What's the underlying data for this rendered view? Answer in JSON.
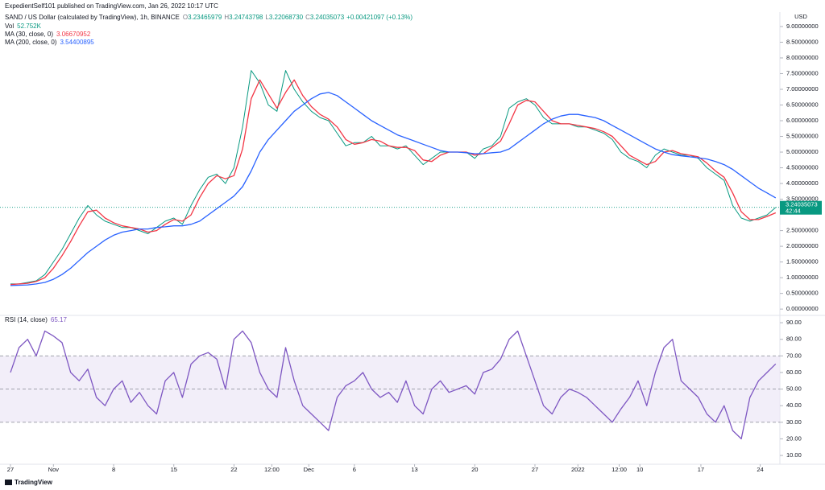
{
  "header": {
    "publisher_line": "ExpedientSelf101 published on TradingView.com, Jan 26, 2022 10:17 UTC",
    "ohlc": [
      [
        "O",
        "3.23465979"
      ],
      [
        "H",
        "3.24743798"
      ],
      [
        "L",
        "3.22068730"
      ],
      [
        "C"
      ]
    ],
    "change": "+0.00421097 (+0.13%)",
    "brand": "TradingView"
  },
  "chart_data": [
    {
      "type": "line",
      "title": "SAND / US Dollar (calculated by TradingView), 1h, BINANCE",
      "axis_label": "USD",
      "volume_label": "Vol",
      "volume_value": "52.752K",
      "countdown": "42:44",
      "x": [
        0,
        1,
        2,
        3,
        4,
        5,
        6,
        7,
        8,
        9,
        10,
        11,
        12,
        13,
        14,
        15,
        16,
        17,
        18,
        19,
        20,
        21,
        22,
        23,
        24,
        25,
        26,
        27,
        28,
        29,
        30,
        31,
        32,
        33,
        34,
        35,
        36,
        37,
        38,
        39,
        40,
        41,
        42,
        43,
        44,
        45,
        46,
        47,
        48,
        49,
        50,
        51,
        52,
        53,
        54,
        55,
        56,
        57,
        58,
        59,
        60,
        61,
        62,
        63,
        64,
        65,
        66,
        67,
        68,
        69,
        70,
        71,
        72,
        73,
        74,
        75,
        76,
        77,
        78,
        79,
        80,
        81,
        82,
        83,
        84,
        85,
        86,
        87,
        88,
        89
      ],
      "xlim": [
        -1.215,
        89.3
      ],
      "ylim": [
        -0.15,
        9.46
      ],
      "yticks": [
        {
          "value": 0,
          "label": "0.00000000"
        },
        {
          "value": 0.5,
          "label": "0.50000000"
        },
        {
          "value": 1,
          "label": "1.00000000"
        },
        {
          "value": 1.5,
          "label": "1.50000000"
        },
        {
          "value": 2,
          "label": "2.00000000"
        },
        {
          "value": 2.5,
          "label": "2.50000000"
        },
        {
          "value": 3.5,
          "label": "3.50000000"
        },
        {
          "value": 4,
          "label": "4.00000000"
        },
        {
          "value": 4.5,
          "label": "4.50000000"
        },
        {
          "value": 5,
          "label": "5.00000000"
        },
        {
          "value": 5.5,
          "label": "5.50000000"
        },
        {
          "value": 6,
          "label": "6.00000000"
        },
        {
          "value": 6.5,
          "label": "6.50000000"
        },
        {
          "value": 7,
          "label": "7.00000000"
        },
        {
          "value": 7.5,
          "label": "7.50000000"
        },
        {
          "value": 8,
          "label": "8.00000000"
        },
        {
          "value": 8.5,
          "label": "8.50000000"
        },
        {
          "value": 9,
          "label": "9.00000000"
        }
      ],
      "grid": false,
      "series": [
        {
          "name": "SAND / USD",
          "color": "#089981",
          "values": [
            0.8,
            0.8,
            0.85,
            0.9,
            1.1,
            1.5,
            1.9,
            2.4,
            2.9,
            3.3,
            3.0,
            2.8,
            2.7,
            2.6,
            2.6,
            2.5,
            2.4,
            2.6,
            2.8,
            2.9,
            2.7,
            3.3,
            3.8,
            4.2,
            4.3,
            4.0,
            4.5,
            5.8,
            7.6,
            7.2,
            6.5,
            6.3,
            7.6,
            7.0,
            6.6,
            6.3,
            6.1,
            6.0,
            5.6,
            5.2,
            5.3,
            5.3,
            5.5,
            5.2,
            5.2,
            5.1,
            5.2,
            4.9,
            4.6,
            4.8,
            5.0,
            5.0,
            5.0,
            5.0,
            4.8,
            5.1,
            5.2,
            5.5,
            6.4,
            6.6,
            6.7,
            6.5,
            6.1,
            5.9,
            5.9,
            5.9,
            5.8,
            5.8,
            5.7,
            5.6,
            5.4,
            5.0,
            4.8,
            4.7,
            4.5,
            4.9,
            5.1,
            5.0,
            4.9,
            4.9,
            4.8,
            4.5,
            4.3,
            4.1,
            3.3,
            2.9,
            2.8,
            2.9,
            3.0,
            3.24035073
          ]
        },
        {
          "name": "MA (30, close, 0)",
          "color": "#f23645",
          "values": [
            0.78,
            0.8,
            0.82,
            0.88,
            1.0,
            1.3,
            1.7,
            2.15,
            2.65,
            3.1,
            3.15,
            2.9,
            2.75,
            2.65,
            2.6,
            2.55,
            2.45,
            2.5,
            2.7,
            2.85,
            2.8,
            3.0,
            3.55,
            4.0,
            4.25,
            4.15,
            4.25,
            5.1,
            6.7,
            7.3,
            6.85,
            6.4,
            6.9,
            7.3,
            6.8,
            6.45,
            6.2,
            6.05,
            5.8,
            5.4,
            5.25,
            5.3,
            5.4,
            5.35,
            5.2,
            5.15,
            5.15,
            5.05,
            4.75,
            4.7,
            4.9,
            5.0,
            5.0,
            5.0,
            4.9,
            4.95,
            5.15,
            5.35,
            5.9,
            6.5,
            6.65,
            6.6,
            6.3,
            6.0,
            5.9,
            5.9,
            5.85,
            5.8,
            5.75,
            5.65,
            5.5,
            5.2,
            4.9,
            4.75,
            4.6,
            4.7,
            5.0,
            5.05,
            4.95,
            4.9,
            4.85,
            4.65,
            4.4,
            4.2,
            3.7,
            3.1,
            2.85,
            2.85,
            2.95,
            3.06670952
          ]
        },
        {
          "name": "MA (200, close, 0)",
          "color": "#2962ff",
          "values": [
            0.75,
            0.76,
            0.77,
            0.8,
            0.85,
            0.95,
            1.1,
            1.3,
            1.55,
            1.8,
            2.0,
            2.2,
            2.35,
            2.45,
            2.5,
            2.55,
            2.55,
            2.6,
            2.62,
            2.65,
            2.65,
            2.7,
            2.8,
            3.0,
            3.2,
            3.4,
            3.6,
            3.9,
            4.4,
            5.0,
            5.4,
            5.7,
            6.0,
            6.3,
            6.5,
            6.7,
            6.85,
            6.9,
            6.8,
            6.6,
            6.4,
            6.2,
            6.0,
            5.85,
            5.7,
            5.55,
            5.45,
            5.35,
            5.25,
            5.15,
            5.05,
            5.0,
            5.0,
            4.98,
            4.95,
            4.95,
            4.98,
            5.0,
            5.1,
            5.3,
            5.5,
            5.7,
            5.9,
            6.05,
            6.15,
            6.2,
            6.2,
            6.15,
            6.1,
            6.0,
            5.85,
            5.7,
            5.55,
            5.4,
            5.25,
            5.1,
            5.0,
            4.92,
            4.88,
            4.85,
            4.82,
            4.78,
            4.7,
            4.6,
            4.45,
            4.25,
            4.05,
            3.85,
            3.7,
            3.54400895
          ]
        }
      ]
    },
    {
      "type": "line",
      "x": [
        0,
        1,
        2,
        3,
        4,
        5,
        6,
        7,
        8,
        9,
        10,
        11,
        12,
        13,
        14,
        15,
        16,
        17,
        18,
        19,
        20,
        21,
        22,
        23,
        24,
        25,
        26,
        27,
        28,
        29,
        30,
        31,
        32,
        33,
        34,
        35,
        36,
        37,
        38,
        39,
        40,
        41,
        42,
        43,
        44,
        45,
        46,
        47,
        48,
        49,
        50,
        51,
        52,
        53,
        54,
        55,
        56,
        57,
        58,
        59,
        60,
        61,
        62,
        63,
        64,
        65,
        66,
        67,
        68,
        69,
        70,
        71,
        72,
        73,
        74,
        75,
        76,
        77,
        78,
        79,
        80,
        81,
        82,
        83,
        84,
        85,
        86,
        87,
        88,
        89
      ],
      "xlim": [
        -1.215,
        89.3
      ],
      "ylim": [
        4.7,
        94.4
      ],
      "xticks": [
        {
          "value": 0,
          "label": "27"
        },
        {
          "value": 5,
          "label": "Nov"
        },
        {
          "value": 12,
          "label": "8"
        },
        {
          "value": 19,
          "label": "15"
        },
        {
          "value": 26,
          "label": "22"
        },
        {
          "value": 30.4,
          "label": "12:00"
        },
        {
          "value": 34.7,
          "label": "Dec"
        },
        {
          "value": 40,
          "label": "6"
        },
        {
          "value": 47,
          "label": "13"
        },
        {
          "value": 54,
          "label": "20"
        },
        {
          "value": 61,
          "label": "27"
        },
        {
          "value": 66,
          "label": "2022"
        },
        {
          "value": 70.8,
          "label": "12:00"
        },
        {
          "value": 73.2,
          "label": "10"
        },
        {
          "value": 80.3,
          "label": "17"
        },
        {
          "value": 87.2,
          "label": "24"
        }
      ],
      "yticks": [
        {
          "value": 10,
          "label": "10.00"
        },
        {
          "value": 20,
          "label": "20.00"
        },
        {
          "value": 30,
          "label": "30.00"
        },
        {
          "value": 40,
          "label": "40.00"
        },
        {
          "value": 50,
          "label": "50.00"
        },
        {
          "value": 60,
          "label": "60.00"
        },
        {
          "value": 70,
          "label": "70.00"
        },
        {
          "value": 80,
          "label": "80.00"
        },
        {
          "value": 90,
          "label": "90.00"
        }
      ],
      "levels": [
        70,
        50,
        30
      ],
      "band_color": "#ede7f6",
      "series": [
        {
          "name": "RSI (14, close)",
          "color": "#7e57c2",
          "values": [
            60,
            75,
            80,
            70,
            85,
            82,
            78,
            60,
            55,
            62,
            45,
            40,
            50,
            55,
            42,
            48,
            40,
            35,
            55,
            60,
            45,
            65,
            70,
            72,
            68,
            50,
            80,
            85,
            78,
            60,
            50,
            45,
            75,
            55,
            40,
            35,
            30,
            25,
            45,
            52,
            55,
            60,
            50,
            45,
            48,
            42,
            55,
            40,
            35,
            50,
            55,
            48,
            50,
            52,
            47,
            60,
            62,
            68,
            80,
            85,
            70,
            55,
            40,
            35,
            45,
            50,
            48,
            45,
            40,
            35,
            30,
            38,
            45,
            55,
            40,
            60,
            75,
            80,
            55,
            50,
            45,
            35,
            30,
            40,
            25,
            20,
            45,
            55,
            60,
            65.17
          ]
        }
      ]
    }
  ]
}
